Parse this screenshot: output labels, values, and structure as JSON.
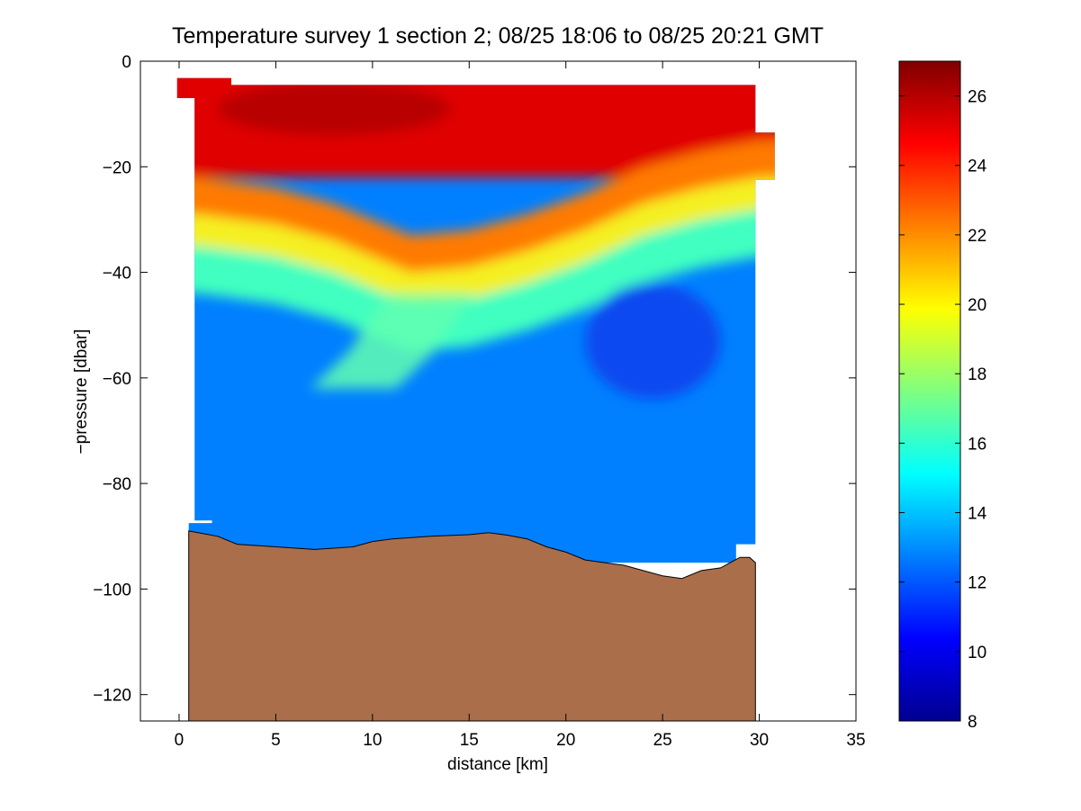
{
  "chart_data": {
    "type": "heatmap",
    "title": "Temperature survey 1 section 2; 08/25 18:06 to 08/25 20:21 GMT",
    "xlabel": "distance [km]",
    "ylabel": "−pressure [dbar]",
    "xlim": [
      -2,
      35
    ],
    "ylim": [
      -125,
      0
    ],
    "xticks": [
      0,
      5,
      10,
      15,
      20,
      25,
      30,
      35
    ],
    "yticks": [
      0,
      -20,
      -40,
      -60,
      -80,
      -100,
      -120
    ],
    "xtick_labels": [
      "0",
      "5",
      "10",
      "15",
      "20",
      "25",
      "30",
      "35"
    ],
    "ytick_labels": [
      "0",
      "−20",
      "−40",
      "−60",
      "−80",
      "−100",
      "−120"
    ],
    "colorbar": {
      "range": [
        8,
        27
      ],
      "ticks": [
        8,
        10,
        12,
        14,
        16,
        18,
        20,
        22,
        24,
        26
      ],
      "tick_labels": [
        "8",
        "10",
        "12",
        "14",
        "16",
        "18",
        "20",
        "22",
        "24",
        "26"
      ],
      "colormap": "jet"
    },
    "grid": false,
    "thermocline_depth": [
      {
        "x": 1,
        "y": -30
      },
      {
        "x": 5,
        "y": -32
      },
      {
        "x": 8,
        "y": -35
      },
      {
        "x": 12,
        "y": -41
      },
      {
        "x": 15,
        "y": -40
      },
      {
        "x": 18,
        "y": -37
      },
      {
        "x": 21,
        "y": -33
      },
      {
        "x": 24,
        "y": -28
      },
      {
        "x": 27,
        "y": -25
      },
      {
        "x": 30,
        "y": -23
      }
    ],
    "warm_intrusion_axis": [
      {
        "x": 13,
        "y": -44
      },
      {
        "x": 11,
        "y": -55
      },
      {
        "x": 9,
        "y": -62
      }
    ],
    "cold_core": {
      "x": 24.5,
      "y": -53,
      "value": 11.5
    },
    "bottom_profile": [
      {
        "x": 0.5,
        "y": -89
      },
      {
        "x": 2,
        "y": -90
      },
      {
        "x": 3,
        "y": -91.5
      },
      {
        "x": 5,
        "y": -92
      },
      {
        "x": 7,
        "y": -92.5
      },
      {
        "x": 9,
        "y": -92
      },
      {
        "x": 10,
        "y": -91
      },
      {
        "x": 11,
        "y": -90.5
      },
      {
        "x": 13,
        "y": -90
      },
      {
        "x": 15,
        "y": -89.7
      },
      {
        "x": 16,
        "y": -89.3
      },
      {
        "x": 17,
        "y": -89.8
      },
      {
        "x": 18,
        "y": -90.5
      },
      {
        "x": 19,
        "y": -92
      },
      {
        "x": 20,
        "y": -93
      },
      {
        "x": 21,
        "y": -94.5
      },
      {
        "x": 22,
        "y": -95
      },
      {
        "x": 23,
        "y": -95.5
      },
      {
        "x": 24,
        "y": -96.5
      },
      {
        "x": 25,
        "y": -97.5
      },
      {
        "x": 26,
        "y": -98
      },
      {
        "x": 27,
        "y": -96.5
      },
      {
        "x": 28,
        "y": -96
      },
      {
        "x": 28.5,
        "y": -95
      },
      {
        "x": 29,
        "y": -94
      },
      {
        "x": 29.5,
        "y": -94
      },
      {
        "x": 29.8,
        "y": -95
      },
      {
        "x": 29.8,
        "y": -125
      }
    ],
    "bottom_color": "#ab6e4a"
  }
}
